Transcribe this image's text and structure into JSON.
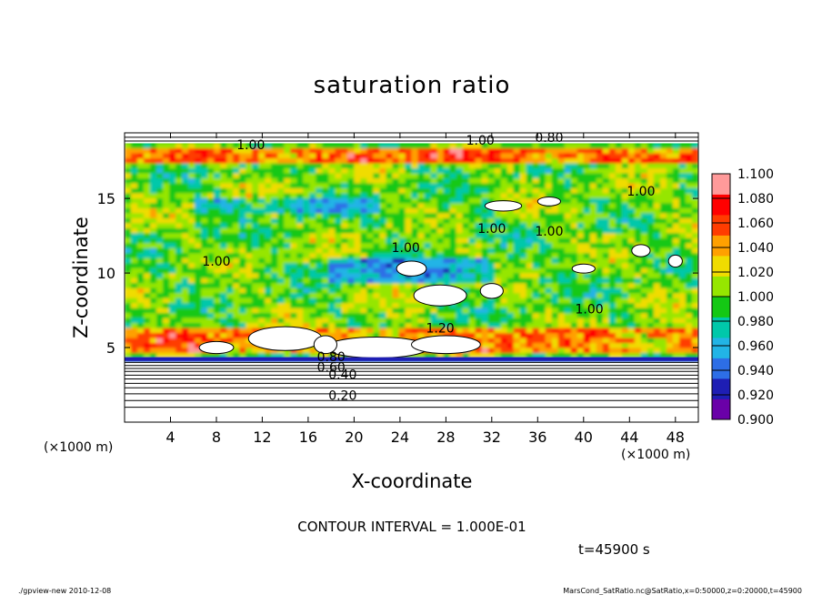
{
  "footer": {
    "left": "./gpview-new   2010-12-08",
    "right": "MarsCond_SatRatio.nc@SatRatio,x=0:50000,z=0:20000,t=45900"
  },
  "chart_data": {
    "type": "heatmap",
    "title": "saturation ratio",
    "xlabel": "X-coordinate",
    "ylabel": "Z-coordinate",
    "x_unit": "(×1000 m)",
    "y_unit": "(×1000 m)",
    "x_range": [
      0,
      50
    ],
    "y_range": [
      0,
      19.4
    ],
    "x_ticks": [
      4,
      8,
      12,
      16,
      20,
      24,
      28,
      32,
      36,
      40,
      44,
      48
    ],
    "y_ticks": [
      5,
      10,
      15
    ],
    "colorbar": {
      "levels": [
        "0.900",
        "0.920",
        "0.940",
        "0.960",
        "0.980",
        "1.000",
        "1.020",
        "1.040",
        "1.060",
        "1.080",
        "1.100"
      ],
      "colors": [
        "#6a00a8",
        "#1e1eb4",
        "#2d6ee6",
        "#22b4e6",
        "#00c8aa",
        "#14c814",
        "#96e600",
        "#f0dc00",
        "#ffa000",
        "#ff3c00",
        "#ff0000",
        "#ff9a9a"
      ]
    },
    "contour_labels": [
      "0.80",
      "1.00",
      "1.00",
      "1.00",
      "1.00",
      "1.00",
      "1.00",
      "1.00",
      "1.20",
      "1.00",
      "0.80",
      "0.60",
      "0.40",
      "0.20"
    ],
    "contour_interval_text": "CONTOUR INTERVAL = 1.000E-01",
    "time_text": "t=45900 s",
    "accent_colors": {
      "axis": "#000000",
      "background": "#ffffff"
    }
  }
}
